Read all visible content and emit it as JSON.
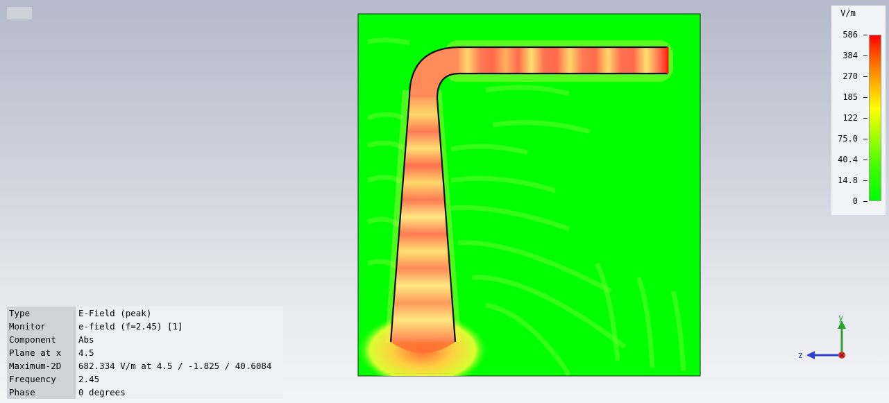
{
  "legend": {
    "unit": "V/m",
    "ticks": [
      "586",
      "384",
      "270",
      "185",
      "122",
      "75.0",
      "40.4",
      "14.8",
      "0"
    ]
  },
  "info": {
    "rows": [
      {
        "key": "Type",
        "value": "E-Field (peak)"
      },
      {
        "key": "Monitor",
        "value": "e-field (f=2.45) [1]"
      },
      {
        "key": "Component",
        "value": "Abs"
      },
      {
        "key": "Plane at x",
        "value": "4.5"
      },
      {
        "key": "Maximum-2D",
        "value": "682.334 V/m at 4.5 / -1.825 / 40.6084"
      },
      {
        "key": "Frequency",
        "value": "2.45"
      },
      {
        "key": "Phase",
        "value": "0 degrees"
      }
    ]
  },
  "axes": {
    "y_label": "y",
    "z_label": "z",
    "y_color": "#2ca02c",
    "z_color": "#2b3fd1",
    "x_color": "#e03030"
  },
  "colors": {
    "background_field": "#00ff00",
    "hot": "#ff6a4a",
    "warm": "#ffd23f"
  }
}
